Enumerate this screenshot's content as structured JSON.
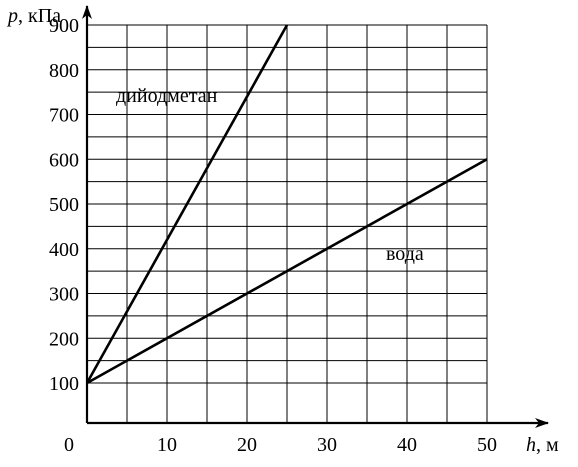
{
  "chart_data": {
    "type": "line",
    "xlabel": {
      "var": "h",
      "unit": ", м"
    },
    "ylabel": {
      "var": "p",
      "unit": ", кПа"
    },
    "origin_label": "0",
    "xlim": [
      0,
      50
    ],
    "ylim": [
      0,
      900
    ],
    "x_ticks": [
      10,
      20,
      30,
      40,
      50
    ],
    "y_ticks": [
      100,
      200,
      300,
      400,
      500,
      600,
      700,
      800,
      900
    ],
    "grid": {
      "x_step": 5,
      "y_step": 50,
      "y_start": 100
    },
    "series": [
      {
        "name": "дийодметан",
        "x": [
          0,
          25
        ],
        "y": [
          100,
          900
        ]
      },
      {
        "name": "вода",
        "x": [
          0,
          50
        ],
        "y": [
          100,
          600
        ]
      }
    ]
  }
}
